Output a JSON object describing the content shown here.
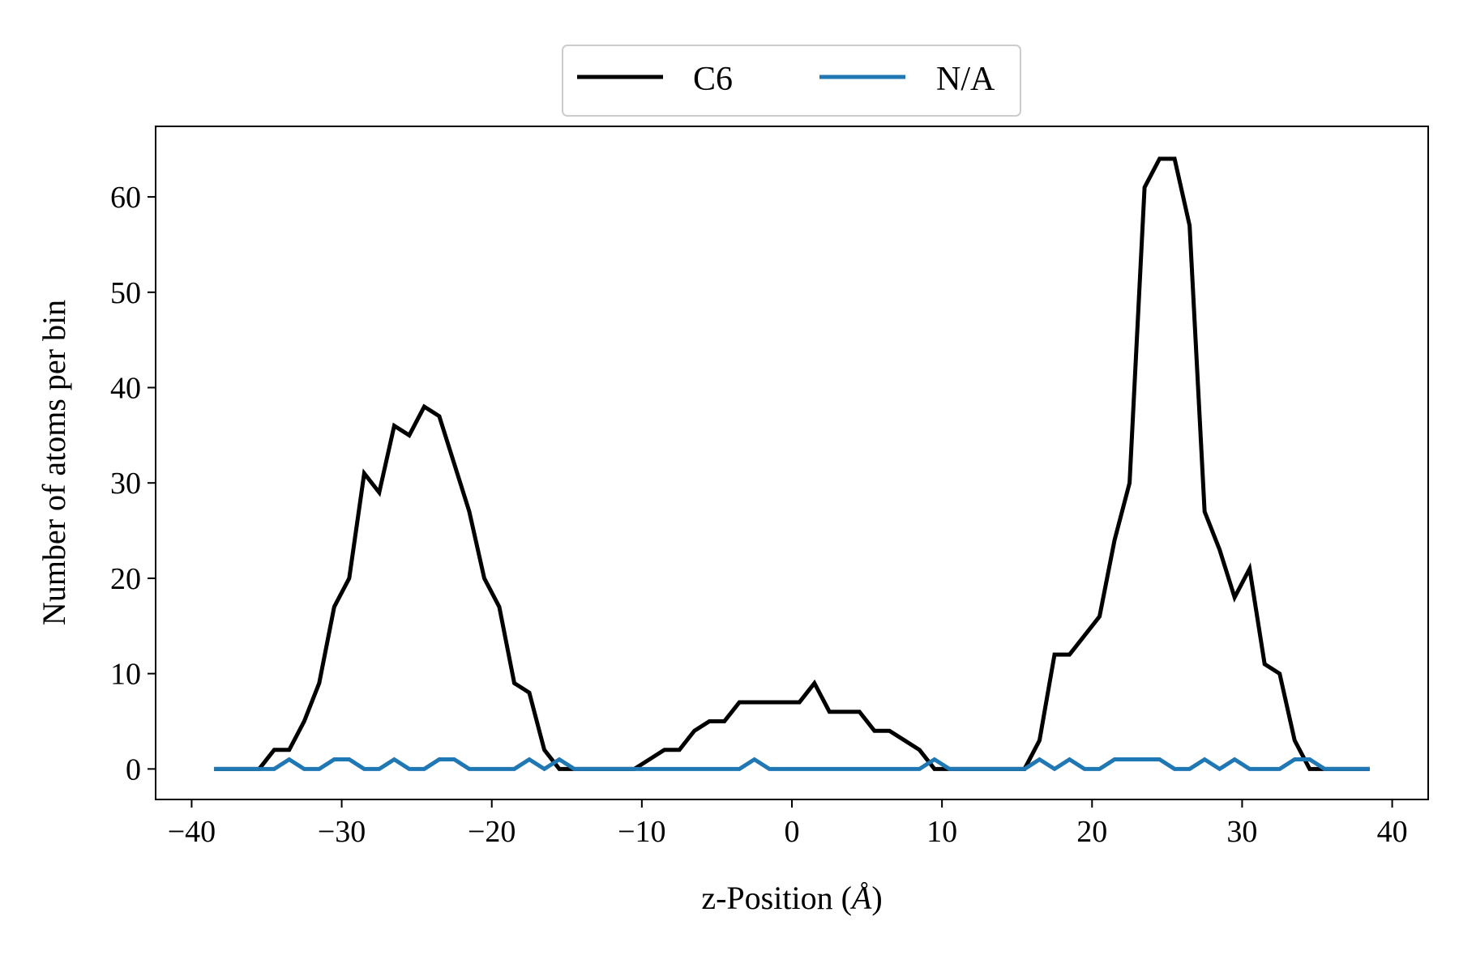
{
  "chart_data": {
    "type": "line",
    "xlabel": "z-Position (",
    "xlabel_unit": "Å",
    "xlabel_close": ")",
    "ylabel": "Number of atoms per bin",
    "xlim": [
      -42.4,
      42.4
    ],
    "ylim": [
      -3.2,
      67.4
    ],
    "xticks": [
      -40,
      -30,
      -20,
      -10,
      0,
      10,
      20,
      30,
      40
    ],
    "xtick_labels": [
      "−40",
      "−30",
      "−20",
      "−10",
      "0",
      "10",
      "20",
      "30",
      "40"
    ],
    "yticks": [
      0,
      10,
      20,
      30,
      40,
      50,
      60
    ],
    "ytick_labels": [
      "0",
      "10",
      "20",
      "30",
      "40",
      "50",
      "60"
    ],
    "grid": false,
    "legend_position": "top-center",
    "x": [
      -38.5,
      -37.5,
      -36.5,
      -35.5,
      -34.5,
      -33.5,
      -32.5,
      -31.5,
      -30.5,
      -29.5,
      -28.5,
      -27.5,
      -26.5,
      -25.5,
      -24.5,
      -23.5,
      -22.5,
      -21.5,
      -20.5,
      -19.5,
      -18.5,
      -17.5,
      -16.5,
      -15.5,
      -14.5,
      -13.5,
      -12.5,
      -11.5,
      -10.5,
      -9.5,
      -8.5,
      -7.5,
      -6.5,
      -5.5,
      -4.5,
      -3.5,
      -2.5,
      -1.5,
      -0.5,
      0.5,
      1.5,
      2.5,
      3.5,
      4.5,
      5.5,
      6.5,
      7.5,
      8.5,
      9.5,
      10.5,
      11.5,
      12.5,
      13.5,
      14.5,
      15.5,
      16.5,
      17.5,
      18.5,
      19.5,
      20.5,
      21.5,
      22.5,
      23.5,
      24.5,
      25.5,
      26.5,
      27.5,
      28.5,
      29.5,
      30.5,
      31.5,
      32.5,
      33.5,
      34.5,
      35.5,
      36.5,
      37.5,
      38.5
    ],
    "series": [
      {
        "name": "C6",
        "color": "#000000",
        "values": [
          0,
          0,
          0,
          0,
          2,
          2,
          5,
          9,
          17,
          20,
          31,
          29,
          36,
          35,
          38,
          37,
          32,
          27,
          20,
          17,
          9,
          8,
          2,
          0,
          0,
          0,
          0,
          0,
          0,
          1,
          2,
          2,
          4,
          5,
          5,
          7,
          7,
          7,
          7,
          7,
          9,
          6,
          6,
          6,
          4,
          4,
          3,
          2,
          0,
          0,
          0,
          0,
          0,
          0,
          0,
          3,
          12,
          12,
          14,
          16,
          24,
          30,
          61,
          64,
          64,
          57,
          27,
          23,
          18,
          21,
          11,
          10,
          3,
          0,
          0,
          0,
          0,
          0
        ]
      },
      {
        "name": "N/A",
        "color": "#1f77b4",
        "values": [
          0,
          0,
          0,
          0,
          0,
          1,
          0,
          0,
          1,
          1,
          0,
          0,
          1,
          0,
          0,
          1,
          1,
          0,
          0,
          0,
          0,
          1,
          0,
          1,
          0,
          0,
          0,
          0,
          0,
          0,
          0,
          0,
          0,
          0,
          0,
          0,
          1,
          0,
          0,
          0,
          0,
          0,
          0,
          0,
          0,
          0,
          0,
          0,
          1,
          0,
          0,
          0,
          0,
          0,
          0,
          1,
          0,
          1,
          0,
          0,
          1,
          1,
          1,
          1,
          0,
          0,
          1,
          0,
          1,
          0,
          0,
          0,
          1,
          1,
          0,
          0,
          0,
          0
        ]
      }
    ]
  }
}
